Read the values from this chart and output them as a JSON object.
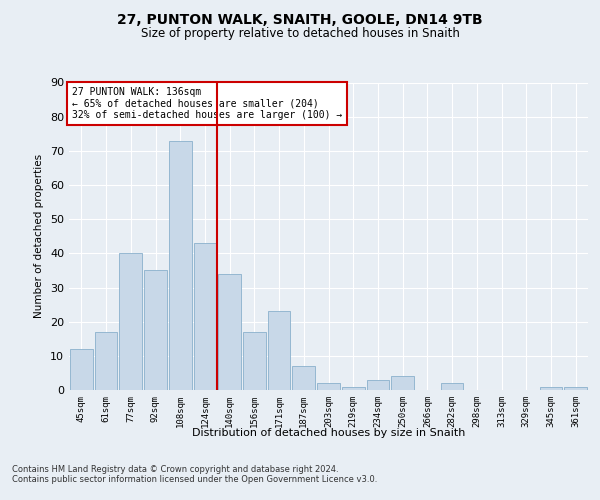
{
  "title_line1": "27, PUNTON WALK, SNAITH, GOOLE, DN14 9TB",
  "title_line2": "Size of property relative to detached houses in Snaith",
  "xlabel": "Distribution of detached houses by size in Snaith",
  "ylabel": "Number of detached properties",
  "categories": [
    "45sqm",
    "61sqm",
    "77sqm",
    "92sqm",
    "108sqm",
    "124sqm",
    "140sqm",
    "156sqm",
    "171sqm",
    "187sqm",
    "203sqm",
    "219sqm",
    "234sqm",
    "250sqm",
    "266sqm",
    "282sqm",
    "298sqm",
    "313sqm",
    "329sqm",
    "345sqm",
    "361sqm"
  ],
  "values": [
    12,
    17,
    40,
    35,
    73,
    43,
    34,
    17,
    23,
    7,
    2,
    1,
    3,
    4,
    0,
    2,
    0,
    0,
    0,
    1,
    1
  ],
  "bar_color": "#c8d8e8",
  "bar_edge_color": "#8ab0cc",
  "annotation_line1": "27 PUNTON WALK: 136sqm",
  "annotation_line2": "← 65% of detached houses are smaller (204)",
  "annotation_line3": "32% of semi-detached houses are larger (100) →",
  "annotation_box_color": "#ffffff",
  "annotation_box_edge_color": "#cc0000",
  "vline_color": "#cc0000",
  "vline_x": 5.5,
  "ylim": [
    0,
    90
  ],
  "yticks": [
    0,
    10,
    20,
    30,
    40,
    50,
    60,
    70,
    80,
    90
  ],
  "background_color": "#e8eef4",
  "grid_color": "#ffffff",
  "footer_line1": "Contains HM Land Registry data © Crown copyright and database right 2024.",
  "footer_line2": "Contains public sector information licensed under the Open Government Licence v3.0."
}
